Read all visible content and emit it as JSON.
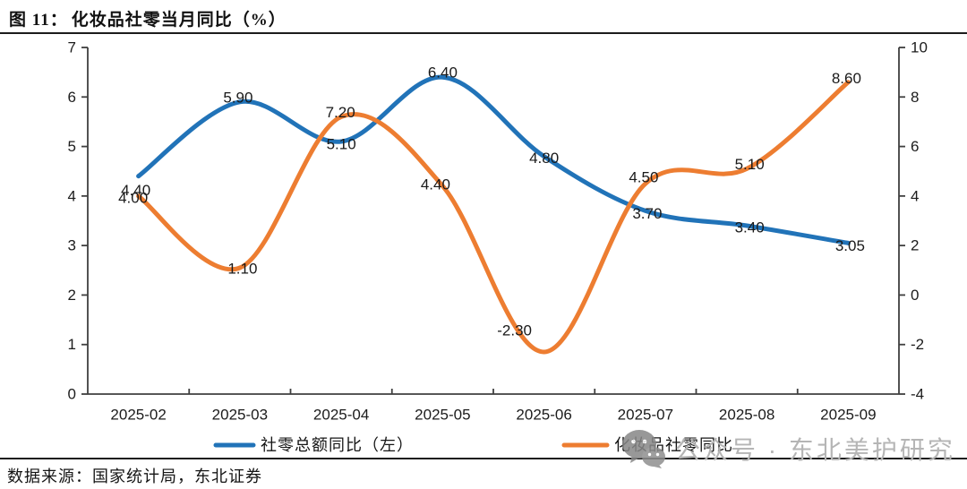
{
  "header": {
    "figure_label": "图  11：",
    "title": "化妆品社零当月同比（%）"
  },
  "chart_data": {
    "type": "line",
    "title": "化妆品社零当月同比（%）",
    "categories": [
      "2025-02",
      "2025-03",
      "2025-04",
      "2025-05",
      "2025-06",
      "2025-07",
      "2025-08",
      "2025-09"
    ],
    "left_axis": {
      "min": 0,
      "max": 7,
      "step": 1,
      "ticks": [
        "0",
        "1",
        "2",
        "3",
        "4",
        "5",
        "6",
        "7"
      ]
    },
    "right_axis": {
      "min": -4,
      "max": 10,
      "step": 2,
      "ticks": [
        "-4",
        "-2",
        "0",
        "2",
        "4",
        "6",
        "8",
        "10"
      ]
    },
    "grid": false,
    "legend_position": "bottom",
    "series": [
      {
        "name": "社零总额同比（左）",
        "axis": "left",
        "color": "#2173B8",
        "values": [
          4.4,
          5.9,
          5.1,
          6.4,
          4.8,
          3.7,
          3.4,
          3.05
        ],
        "labels": [
          "4.40",
          "5.90",
          "5.10",
          "6.40",
          "4.80",
          "3.70",
          "3.40",
          "3.05"
        ]
      },
      {
        "name": "化妆品社零同比",
        "axis": "right",
        "color": "#ED7D31",
        "values": [
          4.0,
          1.1,
          7.2,
          4.4,
          -2.3,
          4.5,
          5.1,
          8.6
        ],
        "labels": [
          "4.00",
          "1.10",
          "7.20",
          "4.40",
          "-2.30",
          "4.50",
          "5.10",
          "8.60"
        ]
      }
    ]
  },
  "footer": {
    "source": "数据来源：国家统计局，东北证券"
  },
  "watermark": {
    "icon": "wechat-official-account-icon",
    "text": "公众号 · 东北美护研究"
  }
}
